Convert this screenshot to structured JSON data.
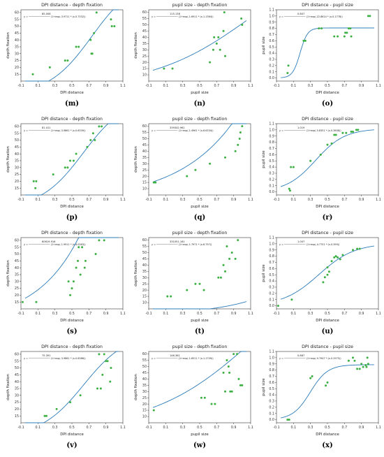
{
  "figure": {
    "captions": [
      "(m)",
      "(n)",
      "(o)",
      "(p)",
      "(q)",
      "(r)",
      "(s)",
      "(t)",
      "(u)",
      "(v)",
      "(w)",
      "(x)"
    ]
  },
  "colors": {
    "point": "#3cb043",
    "curve": "#2b7bb9",
    "axis": "#333333"
  },
  "chart_data": [
    {
      "type": "scatter",
      "title": "DPI distance - depth fixation",
      "xlabel": "DPI distance",
      "ylabel": "depth fixation",
      "xlim": [
        -0.1,
        1.1
      ],
      "ylim": [
        10,
        62
      ],
      "xticks": [
        "-0.1",
        "0.1",
        "0.3",
        "0.5",
        "0.7",
        "0.9",
        "1.1"
      ],
      "yticks": [
        "15",
        "20",
        "25",
        "30",
        "35",
        "40",
        "45",
        "50",
        "55",
        "60"
      ],
      "equation_top": "85.008",
      "equation_bottom": "y = ─────────────── (1+exp(-3.9711 * (x-0.7332))",
      "fit": "logistic",
      "fit_params": {
        "L": 85.008,
        "k": 3.9711,
        "x0": 0.7332
      },
      "points": [
        [
          0.04,
          15
        ],
        [
          0.24,
          20
        ],
        [
          0.42,
          25
        ],
        [
          0.45,
          25
        ],
        [
          0.55,
          35
        ],
        [
          0.58,
          35
        ],
        [
          0.72,
          40
        ],
        [
          0.73,
          30
        ],
        [
          0.74,
          30
        ],
        [
          0.76,
          45
        ],
        [
          0.79,
          60
        ],
        [
          0.96,
          55
        ],
        [
          0.97,
          50
        ],
        [
          1.0,
          50
        ]
      ]
    },
    {
      "type": "scatter",
      "title": "pupil size - depth fixation",
      "xlabel": "pupil size",
      "ylabel": "depth fixation",
      "xlim": [
        -0.1,
        1.1
      ],
      "ylim": [
        5,
        62
      ],
      "xticks": [
        "-0.1",
        "0.1",
        "0.3",
        "0.5",
        "0.7",
        "0.9",
        "1.1"
      ],
      "yticks": [
        "10",
        "15",
        "20",
        "25",
        "30",
        "35",
        "40",
        "45",
        "50",
        "55",
        "60"
      ],
      "equation_top": "115.138",
      "equation_bottom": "y = ─────────────── (1+exp(-1.6911 * (x-1.1364))",
      "fit": "logistic",
      "fit_params": {
        "L": 115.138,
        "k": 1.6911,
        "x0": 1.1364
      },
      "points": [
        [
          0.08,
          15
        ],
        [
          0.18,
          15
        ],
        [
          0.62,
          20
        ],
        [
          0.66,
          30
        ],
        [
          0.67,
          40
        ],
        [
          0.7,
          35
        ],
        [
          0.72,
          40
        ],
        [
          0.74,
          30
        ],
        [
          0.78,
          45
        ],
        [
          0.79,
          60
        ],
        [
          0.8,
          25
        ],
        [
          0.99,
          55
        ],
        [
          1.0,
          50
        ]
      ]
    },
    {
      "type": "scatter",
      "title": "DPI distance - pupil size",
      "xlabel": "DPI distance",
      "ylabel": "pupil size",
      "xlim": [
        -0.1,
        1.1
      ],
      "ylim": [
        -0.05,
        1.1
      ],
      "xticks": [
        "-0.1",
        "0.1",
        "0.3",
        "0.5",
        "0.7",
        "0.9",
        "1.1"
      ],
      "yticks": [
        "0.0",
        "0.1",
        "0.2",
        "0.3",
        "0.4",
        "0.5",
        "0.6",
        "0.7",
        "0.8",
        "0.9",
        "1.0",
        "1.1"
      ],
      "equation_top": "0.807",
      "equation_bottom": "y = ─────────────── (1+exp(-22.8614 * (x-0.1778))",
      "fit": "logistic",
      "fit_params": {
        "L": 0.807,
        "k": 22.8614,
        "x0": 0.1778
      },
      "points": [
        [
          0.03,
          0.08
        ],
        [
          0.04,
          0.2
        ],
        [
          0.22,
          0.6
        ],
        [
          0.24,
          0.6
        ],
        [
          0.4,
          0.8
        ],
        [
          0.43,
          0.8
        ],
        [
          0.58,
          0.67
        ],
        [
          0.62,
          0.67
        ],
        [
          0.7,
          0.67
        ],
        [
          0.71,
          0.73
        ],
        [
          0.73,
          0.73
        ],
        [
          0.75,
          0.8
        ],
        [
          0.77,
          0.8
        ],
        [
          0.78,
          0.67
        ],
        [
          0.98,
          1.0
        ],
        [
          1.0,
          1.0
        ]
      ]
    },
    {
      "type": "scatter",
      "title": "DPI distance - depth fixation",
      "xlabel": "DPI distance",
      "ylabel": "depth fixation",
      "xlim": [
        -0.1,
        1.1
      ],
      "ylim": [
        10,
        62
      ],
      "xticks": [
        "-0.1",
        "0.1",
        "0.3",
        "0.5",
        "0.7",
        "0.9",
        "1.1"
      ],
      "yticks": [
        "15",
        "20",
        "25",
        "30",
        "35",
        "40",
        "45",
        "50",
        "55",
        "60"
      ],
      "equation_top": "81.411",
      "equation_bottom": "y = ─────────────── (1+exp(-3.9861 * (x-0.6339))",
      "fit": "logistic",
      "fit_params": {
        "L": 81.411,
        "k": 3.9861,
        "x0": 0.6339
      },
      "points": [
        [
          0.05,
          20
        ],
        [
          0.07,
          15
        ],
        [
          0.08,
          20
        ],
        [
          0.28,
          25
        ],
        [
          0.42,
          30
        ],
        [
          0.45,
          30
        ],
        [
          0.48,
          35
        ],
        [
          0.52,
          35
        ],
        [
          0.55,
          40
        ],
        [
          0.68,
          45
        ],
        [
          0.72,
          50
        ],
        [
          0.75,
          55
        ],
        [
          0.77,
          50
        ],
        [
          0.82,
          60
        ],
        [
          0.85,
          60
        ]
      ]
    },
    {
      "type": "scatter",
      "title": "pupil size - depth fixation",
      "xlabel": "pupil size",
      "ylabel": "depth fixation",
      "xlim": [
        -0.1,
        1.1
      ],
      "ylim": [
        5,
        62
      ],
      "xticks": [
        "-0.1",
        "0.1",
        "0.3",
        "0.5",
        "0.7",
        "0.9",
        "1.1"
      ],
      "yticks": [
        "10",
        "15",
        "20",
        "25",
        "30",
        "35",
        "40",
        "45",
        "50",
        "55",
        "60"
      ],
      "equation_top": "339342.961",
      "equation_bottom": "y = ─────────────── (1+exp(-1.4961 * (x-6.6334))",
      "fit": "logistic",
      "fit_params": {
        "L": 339342.961,
        "k": 1.4961,
        "x0": 6.6334
      },
      "points": [
        [
          -0.04,
          15
        ],
        [
          -0.02,
          15
        ],
        [
          0.35,
          20
        ],
        [
          0.45,
          25
        ],
        [
          0.62,
          30
        ],
        [
          0.8,
          35
        ],
        [
          0.92,
          40
        ],
        [
          0.95,
          45
        ],
        [
          0.97,
          50
        ],
        [
          0.98,
          55
        ],
        [
          1.0,
          60
        ]
      ]
    },
    {
      "type": "scatter",
      "title": "DPI distance - pupil size",
      "xlabel": "DPI distance",
      "ylabel": "pupil size",
      "xlim": [
        -0.1,
        1.1
      ],
      "ylim": [
        -0.05,
        1.1
      ],
      "xticks": [
        "-0.1",
        "0.1",
        "0.3",
        "0.5",
        "0.7",
        "0.9",
        "1.1"
      ],
      "yticks": [
        "0.0",
        "0.1",
        "0.2",
        "0.3",
        "0.4",
        "0.5",
        "0.6",
        "0.7",
        "0.8",
        "0.9",
        "1.0",
        "1.1"
      ],
      "equation_top": "1.019",
      "equation_bottom": "y = ─────────────── (1+exp(-5.8351 * (x-0.3608))",
      "fit": "logistic",
      "fit_params": {
        "L": 1.019,
        "k": 5.8351,
        "x0": 0.3608
      },
      "points": [
        [
          0.05,
          0.05
        ],
        [
          0.06,
          0.02
        ],
        [
          0.07,
          0.4
        ],
        [
          0.1,
          0.4
        ],
        [
          0.3,
          0.5
        ],
        [
          0.42,
          0.6
        ],
        [
          0.5,
          0.76
        ],
        [
          0.55,
          0.78
        ],
        [
          0.58,
          0.92
        ],
        [
          0.6,
          0.92
        ],
        [
          0.68,
          0.95
        ],
        [
          0.72,
          0.95
        ],
        [
          0.78,
          0.97
        ],
        [
          0.8,
          0.97
        ],
        [
          0.84,
          1.0
        ],
        [
          0.86,
          1.0
        ]
      ]
    },
    {
      "type": "scatter",
      "title": "DPI distance - depth fixation",
      "xlabel": "DPI distance",
      "ylabel": "depth fixation",
      "xlim": [
        -0.1,
        1.1
      ],
      "ylim": [
        10,
        62
      ],
      "xticks": [
        "-0.1",
        "0.1",
        "0.3",
        "0.5",
        "0.7",
        "0.9",
        "1.1"
      ],
      "yticks": [
        "15",
        "20",
        "25",
        "30",
        "35",
        "40",
        "45",
        "50",
        "55",
        "60"
      ],
      "equation_top": "60619.916",
      "equation_bottom": "y = ─────────────── (1+exp(-1.9911 * (x-4.0363))",
      "fit": "logistic",
      "fit_params": {
        "L": 60619.916,
        "k": 1.9911,
        "x0": 4.0363
      },
      "points": [
        [
          -0.08,
          15
        ],
        [
          0.08,
          15
        ],
        [
          0.46,
          30
        ],
        [
          0.48,
          20
        ],
        [
          0.5,
          25
        ],
        [
          0.52,
          30
        ],
        [
          0.55,
          40
        ],
        [
          0.57,
          45
        ],
        [
          0.58,
          55
        ],
        [
          0.6,
          35
        ],
        [
          0.62,
          55
        ],
        [
          0.65,
          40
        ],
        [
          0.66,
          45
        ],
        [
          0.78,
          50
        ],
        [
          0.82,
          60
        ],
        [
          0.88,
          60
        ]
      ]
    },
    {
      "type": "scatter",
      "title": "pupil size - depth fixation",
      "xlabel": "pupil size",
      "ylabel": "depth fixation",
      "xlim": [
        -0.1,
        1.1
      ],
      "ylim": [
        5,
        62
      ],
      "xticks": [
        "-0.1",
        "0.1",
        "0.3",
        "0.5",
        "0.7",
        "0.9",
        "1.1"
      ],
      "yticks": [
        "10",
        "15",
        "20",
        "25",
        "30",
        "35",
        "40",
        "45",
        "50",
        "55",
        "60"
      ],
      "equation_top": "331051.161",
      "equation_bottom": "y = ─────────────── (1+exp(-1.7971 * (x-6.797))",
      "fit": "logistic",
      "fit_params": {
        "L": 331051.161,
        "k": 1.7971,
        "x0": 6.797
      },
      "points": [
        [
          0.12,
          15
        ],
        [
          0.16,
          15
        ],
        [
          0.35,
          20
        ],
        [
          0.45,
          25
        ],
        [
          0.5,
          25
        ],
        [
          0.55,
          20
        ],
        [
          0.72,
          30
        ],
        [
          0.75,
          30
        ],
        [
          0.78,
          40
        ],
        [
          0.8,
          35
        ],
        [
          0.82,
          55
        ],
        [
          0.85,
          45
        ],
        [
          0.88,
          50
        ],
        [
          0.92,
          45
        ],
        [
          0.95,
          60
        ]
      ]
    },
    {
      "type": "scatter",
      "title": "DPI distance - pupil size",
      "xlabel": "DPI distance",
      "ylabel": "pupil size",
      "xlim": [
        -0.1,
        1.1
      ],
      "ylim": [
        -0.05,
        1.1
      ],
      "xticks": [
        "-0.1",
        "0.1",
        "0.3",
        "0.5",
        "0.7",
        "0.9",
        "1.1"
      ],
      "yticks": [
        "0.0",
        "0.1",
        "0.2",
        "0.3",
        "0.4",
        "0.5",
        "0.6",
        "0.7",
        "0.8",
        "0.9",
        "1.0",
        "1.1"
      ],
      "equation_top": "1.007",
      "equation_bottom": "y = ─────────────── (1+exp(-4.7751 * (x-0.399))",
      "fit": "logistic",
      "fit_params": {
        "L": 1.007,
        "k": 4.7751,
        "x0": 0.399
      },
      "points": [
        [
          -0.08,
          0.0
        ],
        [
          0.08,
          0.1
        ],
        [
          0.45,
          0.38
        ],
        [
          0.47,
          0.46
        ],
        [
          0.5,
          0.5
        ],
        [
          0.52,
          0.55
        ],
        [
          0.5,
          0.62
        ],
        [
          0.55,
          0.72
        ],
        [
          0.58,
          0.78
        ],
        [
          0.6,
          0.8
        ],
        [
          0.62,
          0.78
        ],
        [
          0.65,
          0.75
        ],
        [
          0.68,
          0.82
        ],
        [
          0.8,
          0.9
        ],
        [
          0.85,
          0.92
        ],
        [
          0.88,
          0.92
        ]
      ]
    },
    {
      "type": "scatter",
      "title": "DPI distance - depth fixation",
      "xlabel": "DPI distance",
      "ylabel": "depth fixation",
      "xlim": [
        -0.1,
        1.1
      ],
      "ylim": [
        10,
        62
      ],
      "xticks": [
        "-0.1",
        "0.1",
        "0.3",
        "0.5",
        "0.7",
        "0.9",
        "1.1"
      ],
      "yticks": [
        "15",
        "20",
        "25",
        "30",
        "35",
        "40",
        "45",
        "50",
        "55",
        "60"
      ],
      "equation_top": "75.391",
      "equation_bottom": "y = ─────────────── (1+exp(-3.9861 * (x-0.6386))",
      "fit": "logistic",
      "fit_params": {
        "L": 75.391,
        "k": 3.9861,
        "x0": 0.6386
      },
      "points": [
        [
          0.18,
          15
        ],
        [
          0.2,
          15
        ],
        [
          0.32,
          20
        ],
        [
          0.48,
          25
        ],
        [
          0.6,
          30
        ],
        [
          0.8,
          35
        ],
        [
          0.82,
          60
        ],
        [
          0.84,
          35
        ],
        [
          0.86,
          45
        ],
        [
          0.88,
          60
        ],
        [
          0.9,
          55
        ],
        [
          0.92,
          55
        ],
        [
          0.95,
          40
        ],
        [
          0.96,
          50
        ]
      ]
    },
    {
      "type": "scatter",
      "title": "pupil size - depth fixation",
      "xlabel": "pupil size",
      "ylabel": "depth fixation",
      "xlim": [
        -0.1,
        1.1
      ],
      "ylim": [
        5,
        62
      ],
      "xticks": [
        "-0.1",
        "0.1",
        "0.3",
        "0.5",
        "0.7",
        "0.9",
        "1.1"
      ],
      "yticks": [
        "10",
        "15",
        "20",
        "25",
        "30",
        "35",
        "40",
        "45",
        "50",
        "55",
        "60"
      ],
      "equation_top": "146.361",
      "equation_bottom": "y = ─────────────── (1+exp(-1.6511 * (x-1.1709))",
      "fit": "logistic",
      "fit_params": {
        "L": 146.361,
        "k": 1.6511,
        "x0": 1.1709
      },
      "points": [
        [
          -0.04,
          15
        ],
        [
          0.52,
          25
        ],
        [
          0.56,
          25
        ],
        [
          0.64,
          20
        ],
        [
          0.68,
          20
        ],
        [
          0.78,
          45
        ],
        [
          0.8,
          30
        ],
        [
          0.82,
          55
        ],
        [
          0.84,
          50
        ],
        [
          0.85,
          45
        ],
        [
          0.86,
          30
        ],
        [
          0.88,
          30
        ],
        [
          0.9,
          60
        ],
        [
          0.94,
          60
        ],
        [
          0.96,
          40
        ],
        [
          0.98,
          35
        ],
        [
          1.0,
          35
        ]
      ]
    },
    {
      "type": "scatter",
      "title": "DPI distance - pupil size",
      "xlabel": "DPI distance",
      "ylabel": "pupil size",
      "xlim": [
        -0.1,
        1.1
      ],
      "ylim": [
        -0.05,
        1.1
      ],
      "xticks": [
        "-0.1",
        "0.1",
        "0.3",
        "0.5",
        "0.7",
        "0.9",
        "1.1"
      ],
      "yticks": [
        "0.0",
        "0.1",
        "0.2",
        "0.3",
        "0.4",
        "0.5",
        "0.6",
        "0.7",
        "0.8",
        "0.9",
        "1.0",
        "1.1"
      ],
      "equation_top": "0.887",
      "equation_bottom": "y = ─────────────── (1+exp(-9.7947 * (x-0.2975))",
      "fit": "logistic",
      "fit_params": {
        "L": 0.887,
        "k": 9.7947,
        "x0": 0.2975
      },
      "points": [
        [
          0.03,
          0.0
        ],
        [
          0.05,
          0.0
        ],
        [
          0.3,
          0.67
        ],
        [
          0.32,
          0.7
        ],
        [
          0.48,
          0.55
        ],
        [
          0.5,
          0.6
        ],
        [
          0.75,
          0.95
        ],
        [
          0.8,
          1.0
        ],
        [
          0.82,
          0.95
        ],
        [
          0.85,
          0.82
        ],
        [
          0.88,
          0.82
        ],
        [
          0.9,
          0.9
        ],
        [
          0.92,
          0.85
        ],
        [
          0.95,
          0.88
        ],
        [
          0.96,
          0.85
        ],
        [
          0.98,
          0.9
        ],
        [
          0.97,
          1.0
        ]
      ]
    }
  ]
}
